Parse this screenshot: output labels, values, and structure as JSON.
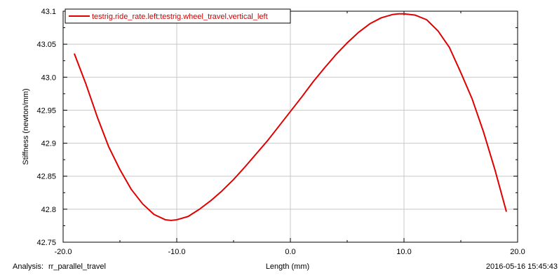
{
  "chart_data": {
    "type": "line",
    "title": "",
    "xlabel": "Length (mm)",
    "ylabel": "Stiffness (newton/mm)",
    "xlim": [
      -20.0,
      20.0
    ],
    "ylim": [
      42.75,
      43.1
    ],
    "x_ticks": [
      -20.0,
      -10.0,
      0.0,
      10.0,
      20.0
    ],
    "x_tick_labels": [
      "-20.0",
      "-10.0",
      "0.0",
      "10.0",
      "20.0"
    ],
    "y_ticks": [
      42.75,
      42.8,
      42.85,
      42.9,
      42.95,
      43.0,
      43.05,
      43.1
    ],
    "y_tick_labels": [
      "42.75",
      "42.8",
      "42.85",
      "42.9",
      "42.95",
      "43.0",
      "43.05",
      "43.1"
    ],
    "grid": true,
    "legend_position": "top-left",
    "series": [
      {
        "name": "testrig.ride_rate.left:testrig.wheel_travel.vertical_left",
        "color": "#e00000",
        "x": [
          -19,
          -18,
          -17,
          -16,
          -15,
          -14,
          -13,
          -12,
          -11,
          -10.5,
          -10,
          -9,
          -8,
          -7,
          -6,
          -5,
          -4,
          -3,
          -2,
          -1,
          0,
          1,
          2,
          3,
          4,
          5,
          6,
          7,
          8,
          9,
          9.5,
          10,
          11,
          12,
          13,
          14,
          15,
          16,
          17,
          18,
          19
        ],
        "y": [
          43.035,
          42.99,
          42.94,
          42.895,
          42.86,
          42.83,
          42.808,
          42.792,
          42.784,
          42.783,
          42.784,
          42.789,
          42.8,
          42.813,
          42.828,
          42.845,
          42.864,
          42.884,
          42.904,
          42.926,
          42.948,
          42.97,
          42.993,
          43.014,
          43.034,
          43.052,
          43.068,
          43.081,
          43.09,
          43.095,
          43.096,
          43.096,
          43.094,
          43.087,
          43.07,
          43.045,
          43.007,
          42.967,
          42.917,
          42.86,
          42.797
        ]
      }
    ]
  },
  "footer": {
    "analysis_label": "Analysis:",
    "analysis_value": "rr_parallel_travel",
    "timestamp": "2016-05-16 15:45:43"
  }
}
